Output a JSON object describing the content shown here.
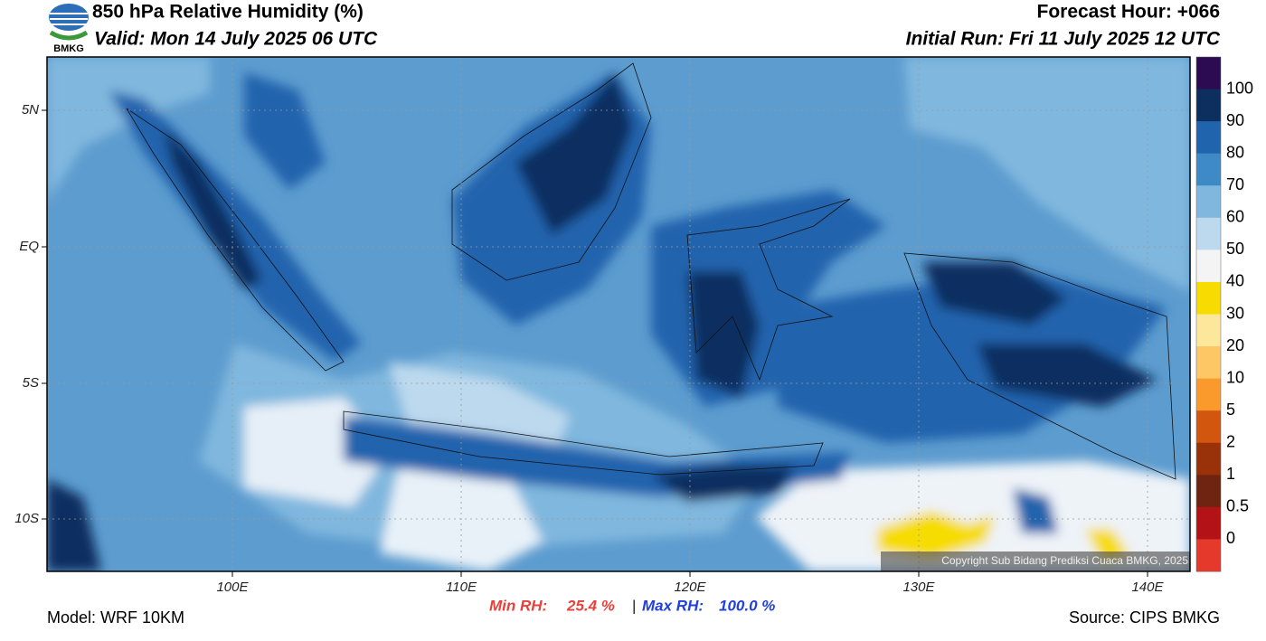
{
  "header": {
    "title": "850 hPa Relative Humidity (%)",
    "valid": "Valid: Mon 14 July 2025 06 UTC",
    "forecast_hour": "Forecast Hour: +066",
    "initial_run": "Initial Run: Fri 11 July 2025 12 UTC",
    "logo_text": "BMKG"
  },
  "map": {
    "lat_labels": [
      "5N",
      "EQ",
      "5S",
      "10S"
    ],
    "lon_labels": [
      "100E",
      "110E",
      "120E",
      "130E",
      "140E"
    ],
    "copyright": "Copyright Sub Bidang Prediksi Cuaca BMKG, 2025"
  },
  "colorbar": {
    "labels": [
      "100",
      "90",
      "80",
      "70",
      "60",
      "50",
      "40",
      "30",
      "20",
      "10",
      "5",
      "2",
      "1",
      "0.5",
      "0"
    ],
    "colors": [
      "#2b0b52",
      "#0c2f60",
      "#2064ad",
      "#3d8ac6",
      "#80b7de",
      "#bcd9ee",
      "#f4f4f4",
      "#f6dc00",
      "#fde79a",
      "#fdc766",
      "#fb9a2c",
      "#d3560e",
      "#9a3209",
      "#6e2410",
      "#b31217",
      "#e5392c"
    ]
  },
  "footer": {
    "model": "Model: WRF 10KM",
    "min_rh_label": "Min RH:",
    "min_rh": "25.4 %",
    "separator": "|",
    "max_rh_label": "Max RH:",
    "max_rh": "100.0 %",
    "source": "Source: CIPS BMKG"
  }
}
